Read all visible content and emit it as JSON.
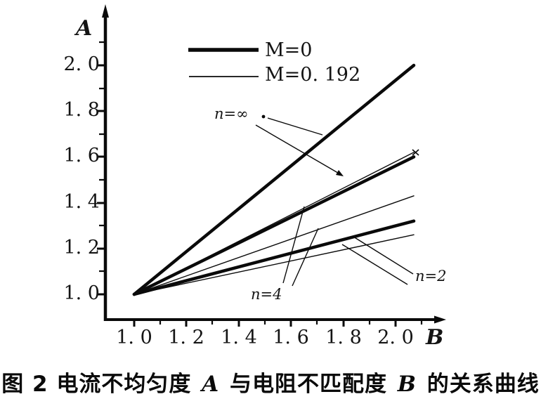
{
  "figure": {
    "axis": {
      "y_label": "A",
      "x_label": "B"
    },
    "y_tick_labels": [
      "2. 0",
      "1. 8",
      "1. 6",
      "1. 4",
      "1. 2",
      "1. 0"
    ],
    "x_tick_labels": [
      "1. 0",
      "1. 2",
      "1. 4",
      "1. 6",
      "1. 8",
      "2. 0"
    ],
    "legend": {
      "items": [
        {
          "label": "M=0",
          "line_style": "thick"
        },
        {
          "label": "M=0. 192",
          "line_style": "thin"
        }
      ]
    },
    "annotations": {
      "n_inf": "n=∞",
      "n_4": "n=4",
      "n_2": "n=2"
    },
    "caption": {
      "parts": [
        "图 2  电流不均匀度 ",
        "A",
        " 与电阻不匹配度 ",
        "B",
        " 的关系曲线"
      ],
      "full_text": "图 2 电流不均匀度 A 与电阻不匹配度 B 的关系曲线"
    }
  },
  "chart_data": {
    "type": "line",
    "title": "图2 电流不均匀度A与电阻不匹配度B的关系曲线",
    "xlabel": "B",
    "ylabel": "A",
    "xlim": [
      1.0,
      2.0
    ],
    "ylim": [
      1.0,
      2.0
    ],
    "x_ticks": [
      1.0,
      1.2,
      1.4,
      1.6,
      1.8,
      2.0
    ],
    "y_ticks": [
      1.0,
      1.2,
      1.4,
      1.6,
      1.8,
      2.0
    ],
    "grid": false,
    "legend_position": "top-left-inside",
    "series": [
      {
        "name": "M=0, n=∞",
        "group": "M=0",
        "n": "∞",
        "style": "thick",
        "x": [
          1.0,
          2.0
        ],
        "y": [
          1.0,
          2.0
        ]
      },
      {
        "name": "M=0.192, n=∞",
        "group": "M=0.192",
        "n": "∞",
        "style": "thin",
        "x": [
          1.0,
          2.0
        ],
        "y": [
          1.0,
          1.62
        ]
      },
      {
        "name": "M=0, n=4",
        "group": "M=0",
        "n": "4",
        "style": "thick",
        "x": [
          1.0,
          2.0
        ],
        "y": [
          1.0,
          1.6
        ]
      },
      {
        "name": "M=0.192, n=4",
        "group": "M=0.192",
        "n": "4",
        "style": "thin",
        "x": [
          1.0,
          2.0
        ],
        "y": [
          1.0,
          1.43
        ]
      },
      {
        "name": "M=0, n=2",
        "group": "M=0",
        "n": "2",
        "style": "thick",
        "x": [
          1.0,
          2.0
        ],
        "y": [
          1.0,
          1.32
        ]
      },
      {
        "name": "M=0.192, n=2",
        "group": "M=0.192",
        "n": "2",
        "style": "thin",
        "x": [
          1.0,
          2.0
        ],
        "y": [
          1.0,
          1.26
        ]
      }
    ]
  }
}
